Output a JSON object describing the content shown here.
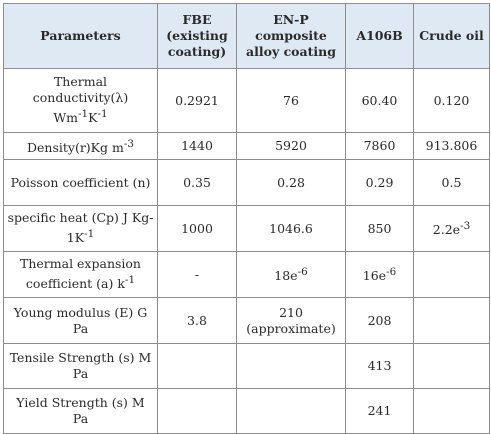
{
  "table": {
    "headers": [
      "Parameters",
      "FBE (existing coating)",
      "EN-P composite alloy coating",
      "A106B",
      "Crude oil"
    ],
    "rows": [
      {
        "param": "Thermal conductivity(λ)",
        "param2": "Wm",
        "sup1": "-1",
        "mid": "K",
        "sup2": "-1",
        "values": [
          "0.2921",
          "76",
          "60.40",
          "0.120"
        ]
      },
      {
        "param": "Density(r)Kg m",
        "sup": "-3",
        "values": [
          "1440",
          "5920",
          "7860",
          "913.806"
        ]
      },
      {
        "param": "Poisson coefficient (n)",
        "values": [
          "0.35",
          "0.28",
          "0.29",
          "0.5"
        ]
      },
      {
        "param": "specific heat (Cp) J Kg-1K",
        "sup": "-1",
        "values": [
          "1000",
          "1046.6",
          "850",
          "2.2e"
        ],
        "values_sup": [
          "",
          "",
          "",
          "-3"
        ]
      },
      {
        "param": "Thermal expansion coefficient (a) k",
        "sup": "-1",
        "values": [
          "-",
          "18e",
          "16e",
          ""
        ],
        "values_sup": [
          "",
          "-6",
          "-6",
          ""
        ]
      },
      {
        "param": "Young modulus (E) G Pa",
        "values": [
          "3.8",
          "210",
          "208",
          ""
        ],
        "values_line2": [
          "",
          "(approximate)",
          "",
          ""
        ]
      },
      {
        "param": "Tensile Strength (s) M Pa",
        "values": [
          "",
          "",
          "413",
          ""
        ]
      },
      {
        "param": "Yield Strength (s) M Pa",
        "values": [
          "",
          "",
          "241",
          ""
        ]
      }
    ]
  }
}
